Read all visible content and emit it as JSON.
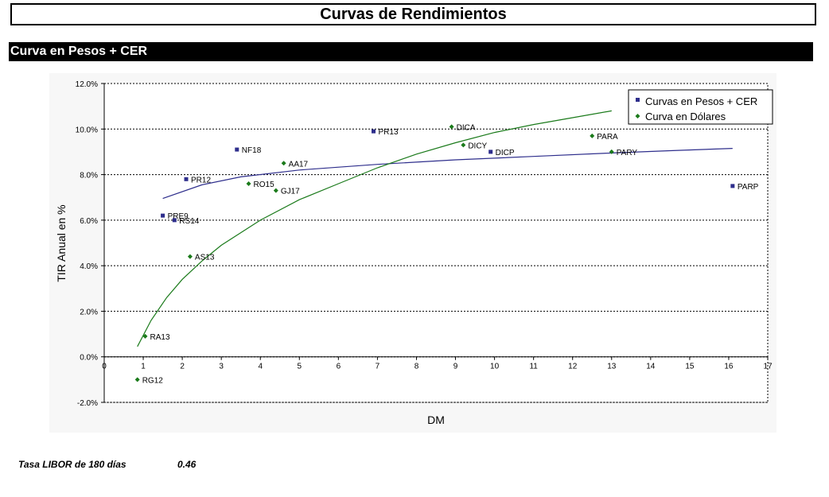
{
  "page": {
    "title": "Curvas de Rendimientos",
    "section": "Curva en Pesos + CER"
  },
  "footer": {
    "label": "Tasa LIBOR de 180 días",
    "value": "0.46"
  },
  "colors": {
    "pesos": "#2e2e8c",
    "dolares": "#1a7a1a",
    "header_bg": "#000000",
    "plot_bg": "#f4f4f4"
  },
  "chart_data": {
    "type": "scatter",
    "xlabel": "DM",
    "ylabel": "TIR Anual en %",
    "xlim": [
      0,
      17
    ],
    "ylim": [
      -2.0,
      12.0
    ],
    "x_ticks": [
      0,
      1,
      2,
      3,
      4,
      5,
      6,
      7,
      8,
      9,
      10,
      11,
      12,
      13,
      14,
      15,
      16,
      17
    ],
    "y_ticks": [
      -2.0,
      0.0,
      2.0,
      4.0,
      6.0,
      8.0,
      10.0,
      12.0
    ],
    "y_tick_labels": [
      "-2.0%",
      "0.0%",
      "2.0%",
      "4.0%",
      "6.0%",
      "8.0%",
      "10.0%",
      "12.0%"
    ],
    "grid": "horizontal dashed",
    "legend_position": "top-right",
    "series": [
      {
        "name": "Curvas en Pesos + CER",
        "marker": "square",
        "color": "#2e2e8c",
        "points": [
          {
            "label": "PR13",
            "x": 6.9,
            "y": 9.9
          },
          {
            "label": "NF18",
            "x": 3.4,
            "y": 9.1
          },
          {
            "label": "PR12",
            "x": 2.1,
            "y": 7.8
          },
          {
            "label": "PRE9",
            "x": 1.5,
            "y": 6.2
          },
          {
            "label": "RS14",
            "x": 1.8,
            "y": 6.0
          },
          {
            "label": "DICP",
            "x": 9.9,
            "y": 9.0
          },
          {
            "label": "PARP",
            "x": 16.1,
            "y": 7.5
          }
        ],
        "trend": [
          [
            1.5,
            6.95
          ],
          [
            2.5,
            7.55
          ],
          [
            3.5,
            7.9
          ],
          [
            5,
            8.2
          ],
          [
            7,
            8.45
          ],
          [
            9,
            8.65
          ],
          [
            11,
            8.8
          ],
          [
            13,
            8.95
          ],
          [
            14.5,
            9.05
          ],
          [
            16.1,
            9.15
          ]
        ]
      },
      {
        "name": "Curva en Dólares",
        "marker": "diamond",
        "color": "#1a7a1a",
        "points": [
          {
            "label": "DICA",
            "x": 8.9,
            "y": 10.1
          },
          {
            "label": "DICY",
            "x": 9.2,
            "y": 9.3
          },
          {
            "label": "PARA",
            "x": 12.5,
            "y": 9.7
          },
          {
            "label": "PARY",
            "x": 13.0,
            "y": 9.0
          },
          {
            "label": "AA17",
            "x": 4.6,
            "y": 8.5
          },
          {
            "label": "RO15",
            "x": 3.7,
            "y": 7.6
          },
          {
            "label": "GJ17",
            "x": 4.4,
            "y": 7.3
          },
          {
            "label": "AS13",
            "x": 2.2,
            "y": 4.4
          },
          {
            "label": "RA13",
            "x": 1.05,
            "y": 0.9
          },
          {
            "label": "RG12",
            "x": 0.85,
            "y": -1.0
          }
        ],
        "trend": [
          [
            0.85,
            0.45
          ],
          [
            1.2,
            1.6
          ],
          [
            1.6,
            2.6
          ],
          [
            2.0,
            3.4
          ],
          [
            2.5,
            4.2
          ],
          [
            3.0,
            4.9
          ],
          [
            4.0,
            6.0
          ],
          [
            5.0,
            6.9
          ],
          [
            6.0,
            7.6
          ],
          [
            7.0,
            8.3
          ],
          [
            8.0,
            8.9
          ],
          [
            9.0,
            9.4
          ],
          [
            10.0,
            9.85
          ],
          [
            11.0,
            10.2
          ],
          [
            12.0,
            10.5
          ],
          [
            13.0,
            10.8
          ]
        ]
      }
    ]
  }
}
